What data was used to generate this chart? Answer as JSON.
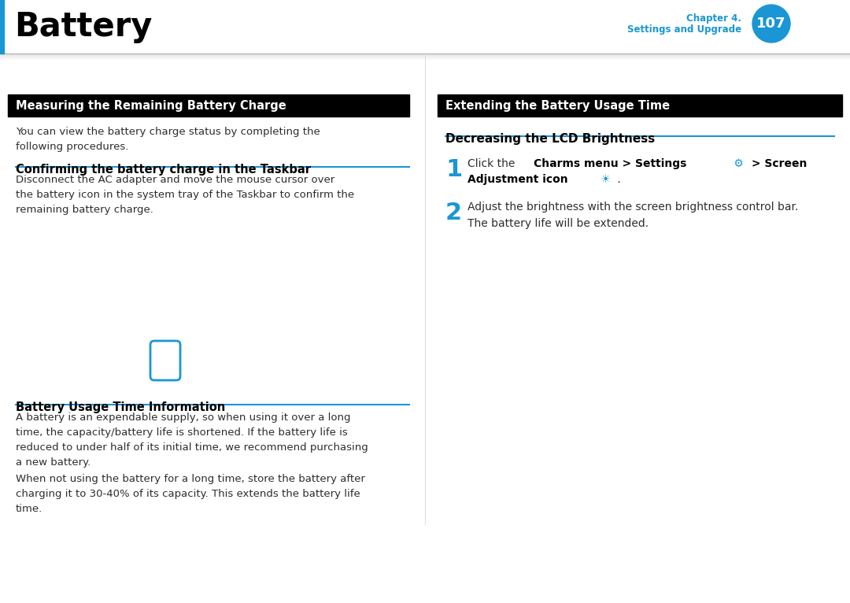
{
  "title": "Battery",
  "chapter_label": "Chapter 4.",
  "chapter_sublabel": "Settings and Upgrade",
  "page_number": "107",
  "accent_color": "#1a96d4",
  "black": "#000000",
  "white": "#ffffff",
  "dark_gray": "#2d2d2d",
  "bg_color": "#ffffff",
  "left_section_title": "Measuring the Remaining Battery Charge",
  "right_section_title": "Extending the Battery Usage Time",
  "left_intro": "You can view the battery charge status by completing the\nfollowing procedures.",
  "left_sub1_title": "Confirming the battery charge in the Taskbar",
  "left_sub1_body": "Disconnect the AC adapter and move the mouse cursor over\nthe battery icon in the system tray of the Taskbar to confirm the\nremaining battery charge.",
  "left_sub2_title": "Battery Usage Time Information",
  "left_sub2_body1": "A battery is an expendable supply, so when using it over a long\ntime, the capacity/battery life is shortened. If the battery life is\nreduced to under half of its initial time, we recommend purchasing\na new battery.",
  "left_sub2_body2": "When not using the battery for a long time, store the battery after\ncharging it to 30-40% of its capacity. This extends the battery life\ntime.",
  "right_sub1_title": "Decreasing the LCD Brightness",
  "step2_body": "Adjust the brightness with the screen brightness control bar.\nThe battery life will be extended."
}
